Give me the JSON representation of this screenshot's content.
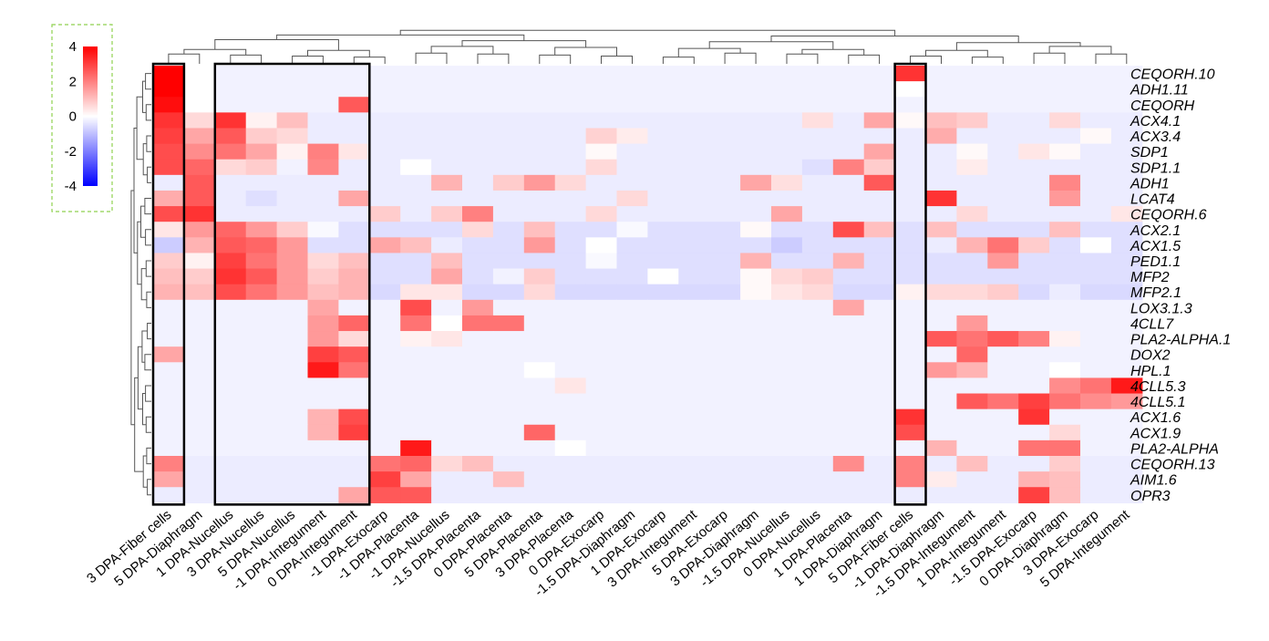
{
  "chart_data": {
    "type": "heatmap",
    "title": "",
    "xlabel": "",
    "ylabel": "",
    "color_scale": {
      "min": -4,
      "max": 4,
      "low": "#0000ff",
      "mid": "#ffffff",
      "high": "#ff0000"
    },
    "legend": {
      "position": "top-left",
      "ticks": [
        "4",
        "2",
        "0",
        "-2",
        "-4"
      ],
      "tick_values": [
        4,
        2,
        0,
        -2,
        -4
      ]
    },
    "columns": [
      "3 DPA-Fiber cells",
      "5 DPA-Diaphragm",
      "1 DPA-Nucellus",
      "3 DPA-Nucellus",
      "5 DPA-Nucellus",
      "-1 DPA-Integument",
      "0 DPA-Integument",
      "-1 DPA-Exocarp",
      "-1 DPA-Placenta",
      "-1 DPA-Nucellus",
      "-1.5 DPA-Placenta",
      "0 DPA-Placenta",
      "5 DPA-Placenta",
      "3 DPA-Placenta",
      "0 DPA-Exocarp",
      "-1.5 DPA-Diaphragm",
      "1 DPA-Exocarp",
      "3 DPA-Integument",
      "5 DPA-Exocarp",
      "3 DPA-Diaphragm",
      "-1.5 DPA-Nucellus",
      "0 DPA-Nucellus",
      "1 DPA-Placenta",
      "1 DPA-Diaphragm",
      "5 DPA-Fiber cells",
      "-1 DPA-Diaphragm",
      "-1.5 DPA-Integument",
      "1 DPA-Integument",
      "-1.5 DPA-Exocarp",
      "0 DPA-Diaphragm",
      "3 DPA-Exocarp",
      "5 DPA-Integument"
    ],
    "rows": [
      "CEQORH.10",
      "ADH1.11",
      "CEQORH",
      "ACX4.1",
      "ACX3.4",
      "SDP1",
      "SDP1.1",
      "ADH1",
      "LCAT4",
      "CEQORH.6",
      "ACX2.1",
      "ACX1.5",
      "PED1.1",
      "MFP2",
      "MFP2.1",
      "LOX3.1.3",
      "4CLL7",
      "PLA2-ALPHA.1",
      "DOX2",
      "HPL.1",
      "4CLL5.3",
      "4CLL5.1",
      "ACX1.6",
      "ACX1.9",
      "PLA2-ALPHA",
      "CEQORH.13",
      "AIM1.6",
      "OPR3"
    ],
    "values": [
      [
        4.2,
        0,
        -0.2,
        -0.2,
        -0.2,
        -0.2,
        -0.2,
        -0.2,
        -0.2,
        -0.2,
        -0.2,
        -0.2,
        -0.2,
        -0.2,
        -0.2,
        -0.2,
        -0.2,
        -0.2,
        -0.2,
        -0.2,
        -0.2,
        -0.2,
        -0.2,
        -0.2,
        3.2,
        -0.2,
        -0.2,
        -0.2,
        -0.2,
        -0.2,
        -0.2,
        -0.2
      ],
      [
        4.5,
        0,
        -0.2,
        -0.2,
        -0.2,
        -0.2,
        -0.2,
        -0.2,
        -0.2,
        -0.2,
        -0.2,
        -0.2,
        -0.2,
        -0.2,
        -0.2,
        -0.2,
        -0.2,
        -0.2,
        -0.2,
        -0.2,
        -0.2,
        -0.2,
        -0.2,
        -0.2,
        0,
        -0.2,
        -0.2,
        -0.2,
        -0.2,
        -0.2,
        -0.2,
        -0.2
      ],
      [
        3.8,
        0,
        -0.2,
        -0.2,
        -0.2,
        -0.2,
        2.6,
        -0.2,
        -0.2,
        -0.2,
        -0.2,
        -0.2,
        -0.2,
        -0.2,
        -0.2,
        -0.2,
        -0.2,
        -0.2,
        -0.2,
        -0.2,
        -0.2,
        -0.2,
        -0.2,
        -0.2,
        -0.2,
        -0.2,
        -0.2,
        -0.2,
        -0.2,
        -0.2,
        -0.2,
        -0.2
      ],
      [
        3.2,
        0.6,
        3.2,
        0.2,
        1.0,
        -0.3,
        -0.3,
        -0.3,
        -0.3,
        -0.3,
        -0.3,
        -0.3,
        -0.3,
        -0.3,
        -0.3,
        -0.3,
        -0.3,
        -0.3,
        -0.3,
        -0.3,
        -0.3,
        0.5,
        -0.3,
        1.4,
        0.1,
        1.0,
        0.8,
        -0.3,
        -0.3,
        0.6,
        -0.3,
        -0.3
      ],
      [
        3.0,
        1.4,
        2.6,
        0.8,
        0.6,
        -0.3,
        -0.3,
        -0.3,
        -0.3,
        -0.3,
        -0.3,
        -0.3,
        -0.3,
        -0.3,
        0.7,
        0.3,
        -0.3,
        -0.3,
        -0.3,
        -0.3,
        -0.3,
        -0.3,
        -0.3,
        -0.3,
        -0.3,
        1.3,
        -0.3,
        -0.3,
        -0.3,
        -0.3,
        0.1,
        -0.3
      ],
      [
        2.8,
        1.8,
        2.2,
        1.4,
        0.2,
        2.0,
        0.4,
        -0.3,
        -0.3,
        -0.3,
        -0.3,
        -0.3,
        -0.3,
        -0.3,
        0.1,
        -0.3,
        -0.3,
        -0.3,
        -0.3,
        -0.3,
        -0.3,
        -0.3,
        -0.3,
        1.4,
        -0.3,
        -0.3,
        0.1,
        -0.3,
        0.4,
        0.1,
        -0.3,
        -0.3
      ],
      [
        2.8,
        2.4,
        0.6,
        0.8,
        -0.2,
        1.9,
        -0.3,
        -0.3,
        0,
        -0.3,
        -0.3,
        -0.3,
        -0.3,
        -0.3,
        0.6,
        -0.3,
        -0.3,
        -0.3,
        -0.3,
        -0.3,
        -0.3,
        -0.5,
        2.0,
        0.8,
        -0.3,
        -0.3,
        0.3,
        -0.3,
        -0.3,
        -0.3,
        -0.3,
        -0.3
      ],
      [
        -0.3,
        2.6,
        -0.3,
        -0.3,
        -0.3,
        -0.3,
        -0.3,
        -0.3,
        -0.3,
        1.2,
        -0.3,
        0.8,
        1.6,
        0.6,
        -0.3,
        -0.3,
        -0.3,
        -0.3,
        -0.3,
        1.4,
        0.5,
        -0.3,
        -0.3,
        2.6,
        -0.3,
        -0.3,
        -0.3,
        -0.3,
        -0.3,
        1.9,
        -0.3,
        -0.3
      ],
      [
        1.3,
        2.6,
        -0.3,
        -0.5,
        -0.3,
        -0.3,
        1.4,
        -0.3,
        -0.3,
        -0.3,
        -0.3,
        -0.3,
        -0.3,
        -0.3,
        -0.3,
        0.6,
        -0.3,
        -0.3,
        -0.3,
        -0.3,
        -0.3,
        -0.3,
        -0.3,
        -0.3,
        -0.3,
        3.2,
        -0.3,
        -0.3,
        -0.3,
        1.6,
        -0.3,
        -0.3
      ],
      [
        2.8,
        3.2,
        -0.3,
        -0.3,
        -0.3,
        -0.3,
        -0.3,
        0.8,
        -0.3,
        0.8,
        2.0,
        -0.3,
        -0.3,
        -0.3,
        0.6,
        -0.3,
        -0.3,
        -0.3,
        -0.3,
        -0.3,
        1.4,
        -0.3,
        -0.3,
        -0.3,
        -0.3,
        -0.3,
        0.6,
        -0.3,
        -0.3,
        -0.3,
        -0.3,
        0.4
      ],
      [
        0.4,
        1.6,
        2.4,
        1.6,
        0.8,
        -0.1,
        -0.5,
        -0.5,
        -0.5,
        -0.5,
        0.6,
        -0.5,
        1.0,
        -0.5,
        -0.5,
        -0.1,
        -0.5,
        -0.5,
        -0.5,
        0.1,
        -0.5,
        -0.5,
        2.8,
        1.0,
        -0.5,
        1.0,
        -0.5,
        -0.5,
        -0.5,
        1.0,
        -0.5,
        -0.5
      ],
      [
        -0.8,
        1.2,
        2.6,
        2.4,
        1.6,
        -0.5,
        -0.5,
        1.4,
        1.0,
        -0.3,
        -0.5,
        -0.5,
        1.6,
        -0.5,
        0,
        -0.5,
        -0.5,
        -0.5,
        -0.5,
        -0.5,
        -0.8,
        -0.5,
        -0.5,
        -0.5,
        -0.5,
        -0.3,
        1.2,
        2.2,
        0.8,
        -0.5,
        0,
        -0.5
      ],
      [
        0.8,
        0.2,
        3.0,
        2.2,
        1.6,
        0.6,
        1.0,
        -0.5,
        -0.5,
        1.0,
        -0.5,
        -0.5,
        -0.5,
        -0.5,
        -0.1,
        -0.5,
        -0.5,
        -0.5,
        -0.5,
        1.2,
        -0.5,
        -0.5,
        1.2,
        -0.5,
        -0.5,
        -0.5,
        -0.5,
        1.6,
        -0.5,
        -0.5,
        -0.5,
        -0.5
      ],
      [
        1.0,
        0.8,
        3.2,
        2.6,
        1.6,
        0.8,
        1.2,
        -0.5,
        -0.5,
        1.4,
        -0.5,
        -0.2,
        0.8,
        -0.5,
        -0.5,
        -0.5,
        0,
        -0.5,
        -0.5,
        0.1,
        0.6,
        0.8,
        -0.5,
        -0.5,
        -0.5,
        -0.5,
        -0.5,
        -0.5,
        -0.5,
        -0.5,
        -0.5,
        -0.5
      ],
      [
        1.2,
        1.0,
        2.8,
        2.2,
        1.6,
        1.0,
        1.2,
        -0.6,
        0.4,
        0.4,
        -0.6,
        -0.6,
        0.6,
        -0.6,
        -0.6,
        -0.6,
        -0.6,
        -0.6,
        -0.6,
        0.1,
        0.4,
        0.6,
        -0.6,
        -0.6,
        0.2,
        0.6,
        0.6,
        0.8,
        -0.6,
        -0.3,
        -0.6,
        -0.6
      ],
      [
        -0.2,
        -0.2,
        -0.2,
        -0.2,
        -0.2,
        1.4,
        -0.2,
        -0.2,
        2.8,
        -0.2,
        1.6,
        -0.2,
        -0.2,
        -0.2,
        -0.2,
        -0.2,
        -0.2,
        -0.2,
        -0.2,
        -0.2,
        -0.2,
        -0.2,
        1.4,
        -0.2,
        -0.2,
        -0.2,
        -0.2,
        -0.2,
        -0.2,
        -0.2,
        -0.2,
        -0.2
      ],
      [
        -0.2,
        -0.2,
        -0.2,
        -0.2,
        -0.2,
        1.6,
        2.4,
        -0.2,
        2.2,
        0,
        2.2,
        2.2,
        -0.2,
        -0.2,
        -0.2,
        -0.2,
        -0.2,
        -0.2,
        -0.2,
        -0.2,
        -0.2,
        -0.2,
        -0.2,
        -0.2,
        -0.2,
        -0.2,
        1.6,
        -0.2,
        -0.2,
        -0.2,
        -0.2,
        -0.2
      ],
      [
        -0.2,
        -0.2,
        -0.2,
        -0.2,
        -0.2,
        1.6,
        0.6,
        -0.2,
        0.2,
        0.4,
        -0.2,
        -0.2,
        -0.2,
        -0.2,
        -0.2,
        -0.2,
        -0.2,
        -0.2,
        -0.2,
        -0.2,
        -0.2,
        -0.2,
        -0.2,
        -0.2,
        -0.2,
        2.6,
        2.2,
        2.6,
        2.0,
        0.2,
        -0.2,
        -0.2
      ],
      [
        1.4,
        -0.2,
        -0.2,
        -0.2,
        -0.2,
        3.0,
        2.6,
        -0.2,
        -0.2,
        -0.2,
        -0.2,
        -0.2,
        -0.2,
        -0.2,
        -0.2,
        -0.2,
        -0.2,
        -0.2,
        -0.2,
        -0.2,
        -0.2,
        -0.2,
        -0.2,
        -0.2,
        -0.2,
        -0.2,
        2.4,
        -0.2,
        -0.2,
        -0.2,
        -0.2,
        -0.2
      ],
      [
        -0.2,
        -0.2,
        -0.2,
        -0.2,
        -0.2,
        3.6,
        2.2,
        -0.2,
        -0.2,
        -0.2,
        -0.2,
        -0.2,
        0,
        -0.2,
        -0.2,
        -0.2,
        -0.2,
        -0.2,
        -0.2,
        -0.2,
        -0.2,
        -0.2,
        -0.2,
        -0.2,
        -0.2,
        1.6,
        1.2,
        -0.2,
        -0.2,
        0,
        -0.2,
        -0.2
      ],
      [
        -0.2,
        -0.2,
        -0.2,
        -0.2,
        -0.2,
        -0.2,
        -0.2,
        -0.2,
        -0.2,
        -0.2,
        -0.2,
        -0.2,
        -0.2,
        0.4,
        -0.2,
        -0.2,
        -0.2,
        -0.2,
        -0.2,
        -0.2,
        -0.2,
        -0.2,
        -0.2,
        -0.2,
        -0.2,
        -0.2,
        -0.2,
        -0.2,
        -0.2,
        1.8,
        2.2,
        3.6
      ],
      [
        -0.2,
        -0.2,
        -0.2,
        -0.2,
        -0.2,
        -0.2,
        -0.2,
        -0.2,
        -0.2,
        -0.2,
        -0.2,
        -0.2,
        -0.2,
        -0.2,
        -0.2,
        -0.2,
        -0.2,
        -0.2,
        -0.2,
        -0.2,
        -0.2,
        -0.2,
        -0.2,
        -0.2,
        -0.2,
        -0.2,
        2.6,
        2.2,
        3.0,
        2.2,
        1.8,
        1.6
      ],
      [
        -0.2,
        -0.2,
        -0.2,
        -0.2,
        -0.2,
        1.2,
        2.8,
        -0.2,
        -0.2,
        -0.2,
        -0.2,
        -0.2,
        -0.2,
        -0.2,
        -0.2,
        -0.2,
        -0.2,
        -0.2,
        -0.2,
        -0.2,
        -0.2,
        -0.2,
        -0.2,
        -0.2,
        3.2,
        -0.2,
        -0.2,
        -0.2,
        3.2,
        -0.2,
        -0.2,
        -0.2
      ],
      [
        -0.2,
        -0.2,
        -0.2,
        -0.2,
        -0.2,
        1.2,
        3.0,
        -0.2,
        -0.2,
        -0.2,
        -0.2,
        -0.2,
        2.4,
        -0.2,
        -0.2,
        -0.2,
        -0.2,
        -0.2,
        -0.2,
        -0.2,
        -0.2,
        -0.2,
        -0.2,
        -0.2,
        2.8,
        -0.2,
        -0.2,
        -0.2,
        -0.2,
        0.6,
        -0.2,
        -0.2
      ],
      [
        -0.2,
        -0.2,
        -0.2,
        -0.2,
        -0.2,
        -0.2,
        -0.2,
        -0.2,
        3.6,
        -0.2,
        -0.2,
        -0.2,
        -0.2,
        0,
        -0.2,
        -0.2,
        -0.2,
        -0.2,
        -0.2,
        -0.2,
        -0.2,
        -0.2,
        -0.2,
        -0.2,
        -0.2,
        1.2,
        -0.2,
        -0.2,
        2.2,
        2.2,
        -0.2,
        -0.2
      ],
      [
        2.0,
        -0.3,
        -0.3,
        -0.3,
        -0.3,
        -0.3,
        -0.3,
        2.2,
        2.4,
        0.6,
        1.0,
        -0.3,
        -0.3,
        -0.3,
        -0.3,
        -0.3,
        -0.3,
        -0.3,
        -0.3,
        -0.3,
        -0.3,
        -0.3,
        1.8,
        -0.3,
        2.0,
        -0.3,
        1.0,
        -0.3,
        -0.3,
        0.8,
        -0.3,
        -0.3
      ],
      [
        1.4,
        -0.3,
        -0.3,
        -0.3,
        -0.3,
        -0.3,
        -0.3,
        3.0,
        1.4,
        -0.3,
        -0.3,
        1.0,
        -0.3,
        -0.3,
        -0.3,
        -0.3,
        -0.3,
        -0.3,
        -0.3,
        -0.3,
        -0.3,
        -0.3,
        -0.3,
        -0.3,
        2.0,
        0.3,
        -0.3,
        -0.3,
        1.2,
        1.0,
        -0.3,
        -0.3
      ],
      [
        -0.3,
        -0.3,
        -0.3,
        -0.3,
        -0.3,
        -0.3,
        1.4,
        2.6,
        2.6,
        -0.3,
        -0.3,
        -0.3,
        -0.3,
        -0.3,
        -0.3,
        -0.3,
        -0.3,
        -0.3,
        -0.3,
        -0.3,
        -0.3,
        -0.3,
        -0.3,
        -0.3,
        -0.3,
        -0.3,
        -0.3,
        -0.3,
        3.0,
        1.0,
        -0.3,
        -0.3
      ]
    ],
    "highlight_boxes": [
      {
        "from_column": "3 DPA-Fiber cells",
        "to_column": "3 DPA-Fiber cells"
      },
      {
        "from_column": "1 DPA-Nucellus",
        "to_column": "0 DPA-Integument"
      },
      {
        "from_column": "5 DPA-Fiber cells",
        "to_column": "5 DPA-Fiber cells"
      }
    ],
    "dendrograms": [
      "rows",
      "columns"
    ]
  }
}
